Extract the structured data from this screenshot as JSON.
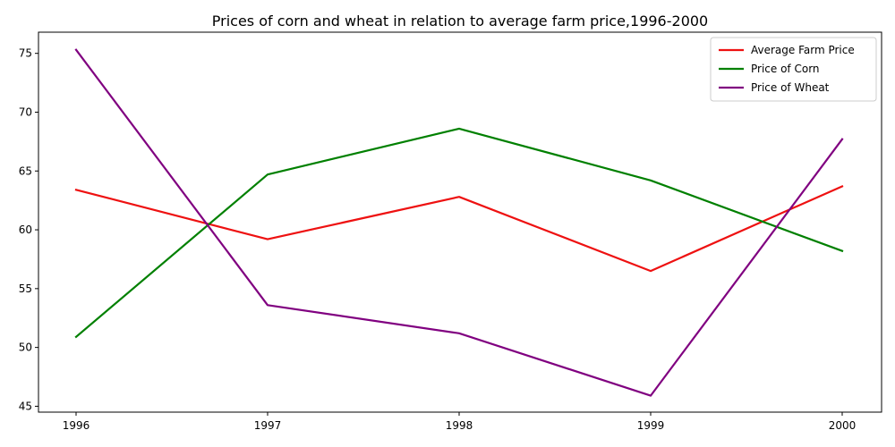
{
  "chart_data": {
    "type": "line",
    "title": "Prices of corn and wheat in relation to average farm price,1996-2000",
    "xlabel": "",
    "ylabel": "",
    "x": [
      "1996",
      "1997",
      "1998",
      "1999",
      "2000"
    ],
    "ylim": [
      44.5,
      76.8
    ],
    "y_ticks": [
      45,
      50,
      55,
      60,
      65,
      70,
      75
    ],
    "grid": false,
    "legend_position": "top-right",
    "series": [
      {
        "name": "Average Farm Price",
        "color": "#ee1111",
        "values": [
          63.4,
          59.2,
          62.8,
          56.5,
          63.7
        ]
      },
      {
        "name": "Price of Corn",
        "color": "#008000",
        "values": [
          50.9,
          64.7,
          68.6,
          64.2,
          58.2
        ]
      },
      {
        "name": "Price of Wheat",
        "color": "#800080",
        "values": [
          75.3,
          53.6,
          51.2,
          45.9,
          67.7
        ]
      }
    ]
  }
}
